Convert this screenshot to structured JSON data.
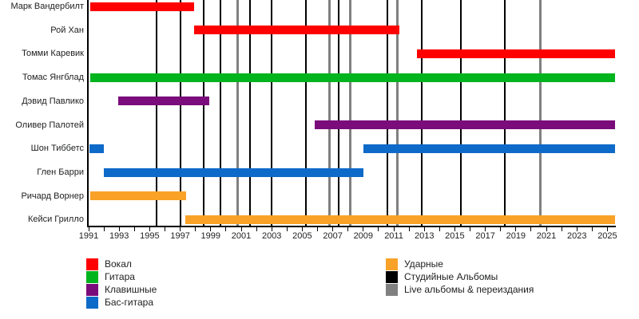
{
  "chart_data": {
    "type": "gantt-timeline",
    "x_axis": {
      "min": 1991,
      "max": 2025.5,
      "minor_tick_step": 1,
      "last_tick_year": 2025,
      "labeled_ticks": [
        "1991",
        "1993",
        "1995",
        "1997",
        "1999",
        "2001",
        "2003",
        "2005",
        "2007",
        "2009",
        "2011",
        "2013",
        "2015",
        "2017",
        "2019",
        "2021",
        "2023",
        "2025"
      ]
    },
    "rows": [
      {
        "name": "Марк Вандербилт",
        "role": "Вокал",
        "color": "#FF0000",
        "segments": [
          [
            1991.1,
            1997.9
          ]
        ]
      },
      {
        "name": "Рой Хан",
        "role": "Вокал",
        "color": "#FF0000",
        "segments": [
          [
            1997.9,
            2011.35
          ]
        ]
      },
      {
        "name": "Томми Каревик",
        "role": "Вокал",
        "color": "#FF0000",
        "segments": [
          [
            2012.5,
            2025.5
          ]
        ]
      },
      {
        "name": "Томас Янгблад",
        "role": "Гитара",
        "color": "#00B41E",
        "segments": [
          [
            1991.1,
            2025.5
          ]
        ]
      },
      {
        "name": "Дэвид Павлико",
        "role": "Клавишные",
        "color": "#7B0C7B",
        "segments": [
          [
            1992.95,
            1998.9
          ]
        ]
      },
      {
        "name": "Оливер Палотей",
        "role": "Клавишные",
        "color": "#7B0C7B",
        "segments": [
          [
            2005.8,
            2025.5
          ]
        ]
      },
      {
        "name": "Шон Тиббетс",
        "role": "Бас-гитара",
        "color": "#0E6AC8",
        "segments": [
          [
            1991.05,
            1992.0
          ],
          [
            2009.0,
            2025.5
          ]
        ]
      },
      {
        "name": "Глен Барри",
        "role": "Бас-гитара",
        "color": "#0E6AC8",
        "segments": [
          [
            1992.0,
            2009.0
          ]
        ]
      },
      {
        "name": "Ричард Ворнер",
        "role": "Ударные",
        "color": "#F9A227",
        "segments": [
          [
            1991.1,
            1997.4
          ]
        ]
      },
      {
        "name": "Кейси Грилло",
        "role": "Ударные",
        "color": "#F9A227",
        "segments": [
          [
            1997.35,
            2025.5
          ]
        ]
      }
    ],
    "event_lines": {
      "studio": {
        "label": "Студийные Альбомы",
        "color": "#000000",
        "years": [
          1995.45,
          1997.0,
          1998.55,
          1999.65,
          2001.6,
          2003.0,
          2005.25,
          2007.4,
          2010.6,
          2012.85,
          2015.4,
          2018.25
        ]
      },
      "live": {
        "label": "Live альбомы & переиздания",
        "color": "#808080",
        "years": [
          2000.75,
          2006.8,
          2008.15,
          2011.25,
          2020.6
        ]
      }
    },
    "legend": {
      "left": [
        {
          "label": "Вокал",
          "color": "#FF0000"
        },
        {
          "label": "Гитара",
          "color": "#00B41E"
        },
        {
          "label": "Клавишные",
          "color": "#7B0C7B"
        },
        {
          "label": "Бас-гитара",
          "color": "#0E6AC8"
        }
      ],
      "right": [
        {
          "label": "Ударные",
          "color": "#F9A227"
        },
        {
          "label": "Студийные Альбомы",
          "color": "#000000"
        },
        {
          "label": "Live альбомы & переиздания",
          "color": "#808080"
        }
      ]
    }
  }
}
